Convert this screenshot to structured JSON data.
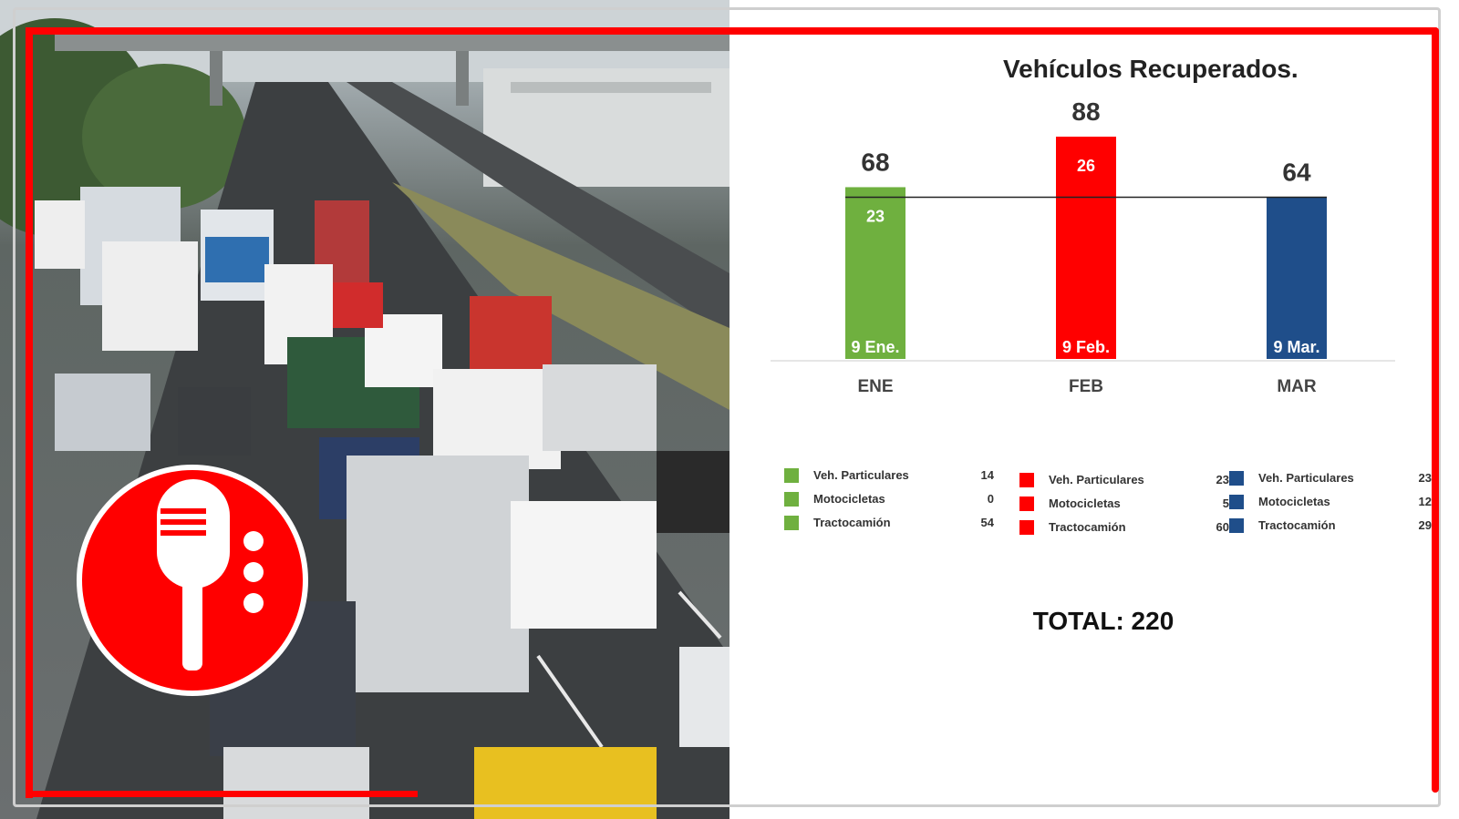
{
  "chart_data": {
    "type": "bar",
    "title": "Vehículos Recuperados.",
    "categories": [
      "ENE",
      "FEB",
      "MAR"
    ],
    "values": [
      68,
      88,
      64
    ],
    "inner_values": [
      "23",
      "26",
      ""
    ],
    "date_labels": [
      "9 Ene.",
      "9 Feb.",
      "9 Mar."
    ],
    "colors": [
      "#6fb03f",
      "#ff0000",
      "#1f4e8a"
    ],
    "ylim": [
      0,
      88
    ],
    "reference_line": 64,
    "grid": false,
    "legend": [
      {
        "color": "#6fb03f",
        "items": [
          {
            "label": "Veh. Particulares",
            "value": "14"
          },
          {
            "label": "Motocicletas",
            "value": "0"
          },
          {
            "label": "Tractocamión",
            "value": "54"
          }
        ]
      },
      {
        "color": "#ff0000",
        "items": [
          {
            "label": "Veh. Particulares",
            "value": "23"
          },
          {
            "label": "Motocicletas",
            "value": "5"
          },
          {
            "label": "Tractocamión",
            "value": "60"
          }
        ]
      },
      {
        "color": "#1f4e8a",
        "items": [
          {
            "label": "Veh. Particulares",
            "value": "23"
          },
          {
            "label": "Motocicletas",
            "value": "12"
          },
          {
            "label": "Tractocamión",
            "value": "29"
          }
        ]
      }
    ],
    "total": "TOTAL: 220"
  },
  "photo": {
    "description_icon": "traffic-photo",
    "badge_icon": "microphone-icon"
  }
}
